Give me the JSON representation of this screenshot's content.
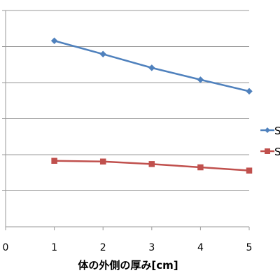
{
  "chart_data": {
    "type": "line",
    "xlabel": "体の外側の厚み[cm]",
    "ylabel": "",
    "x_ticks": [
      "0",
      "1",
      "2",
      "3",
      "4",
      "5"
    ],
    "xlim": [
      0,
      5
    ],
    "ylim": [
      0,
      6
    ],
    "grid": true,
    "legend_position": "right",
    "series": [
      {
        "name": "S",
        "color": "#4F81BD",
        "marker": "diamond",
        "x": [
          1,
          2,
          3,
          4,
          5
        ],
        "y": [
          5.16,
          4.79,
          4.41,
          4.08,
          3.76
        ]
      },
      {
        "name": "S",
        "color": "#C0504D",
        "marker": "square",
        "x": [
          1,
          2,
          3,
          4,
          5
        ],
        "y": [
          1.83,
          1.81,
          1.74,
          1.65,
          1.56
        ]
      }
    ]
  }
}
